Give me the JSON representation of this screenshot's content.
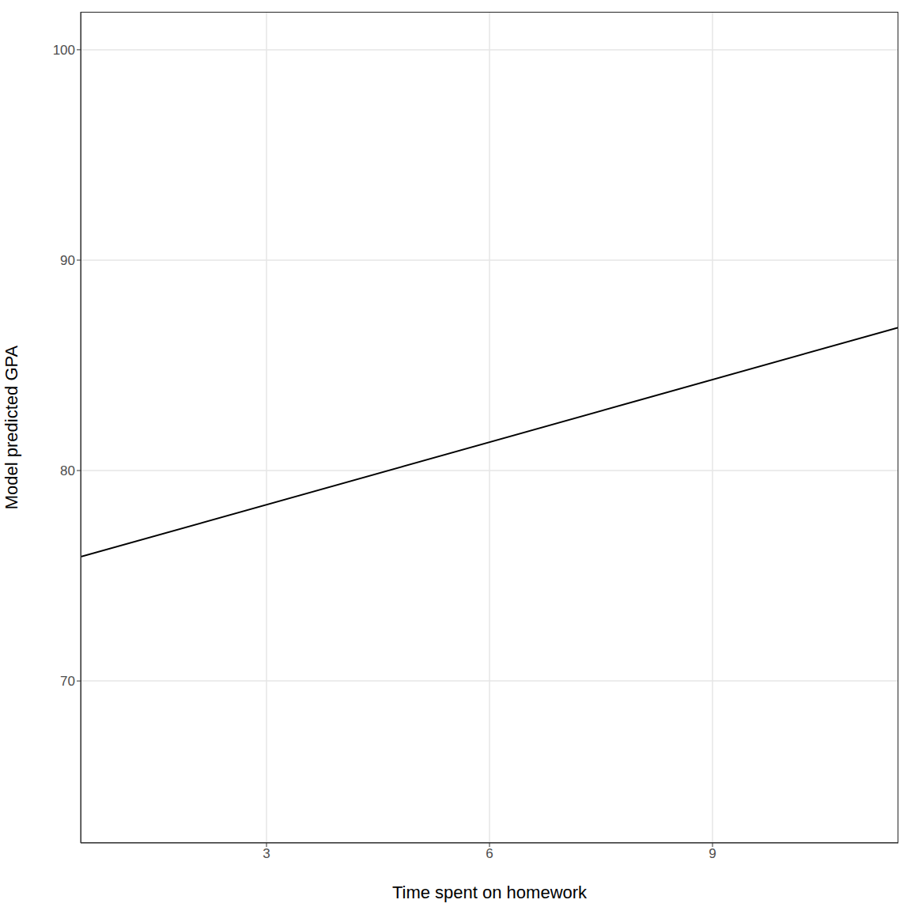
{
  "chart_data": {
    "type": "line",
    "x_label": "Time spent on homework",
    "y_label": "Model predicted GPA",
    "x": [
      0.5,
      11.5
    ],
    "series": [
      {
        "name": "GPA",
        "color": "#000000",
        "values": [
          75.9,
          86.8
        ]
      }
    ],
    "xlim": [
      0.5,
      11.5
    ],
    "ylim": [
      62.3,
      101.8
    ],
    "xticks": [
      3,
      6,
      9
    ],
    "yticks": [
      70,
      80,
      90,
      100
    ],
    "grid": true
  }
}
